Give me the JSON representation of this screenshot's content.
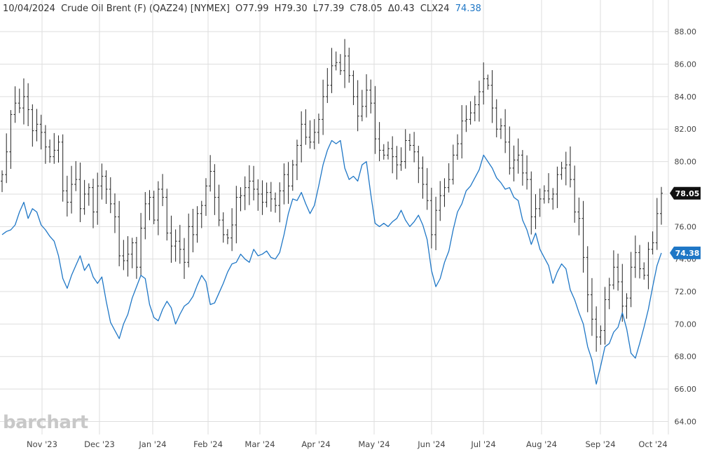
{
  "header": {
    "date": "10/04/2024",
    "instrument": "Crude Oil Brent (F) (QAZ24) [NYMEX]",
    "open": "O77.99",
    "high": "H79.30",
    "low": "L77.39",
    "close": "C78.05",
    "change": "Δ0.43",
    "compare_symbol": "CLX24",
    "compare_value": "74.38"
  },
  "watermark": "barchart",
  "colors": {
    "ohlc": "#222222",
    "compare_line": "#1f77c6",
    "grid": "#dedede",
    "badge_main": "#111111",
    "badge_compare": "#1f77c6"
  },
  "chart_data": {
    "type": "line",
    "title": "",
    "xlabel": "",
    "ylabel": "",
    "ylim": [
      63.2,
      89.0
    ],
    "y_ticks": [
      "64.00",
      "66.00",
      "68.00",
      "70.00",
      "72.00",
      "74.00",
      "76.00",
      "78.00",
      "80.00",
      "82.00",
      "84.00",
      "86.00",
      "88.00"
    ],
    "x_ticks": [
      "Nov '23",
      "Dec '23",
      "Jan '24",
      "Feb '24",
      "Mar '24",
      "Apr '24",
      "May '24",
      "Jun '24",
      "Jul '24",
      "Aug '24",
      "Sep '24",
      "Oct '24"
    ],
    "grid": true,
    "last_values": {
      "main": "78.05",
      "compare": "74.38"
    },
    "series": [
      {
        "name": "Crude Oil Brent (F) (QAZ24) [NYMEX]",
        "style": "ohlc",
        "values": [
          79.2,
          80.6,
          82.9,
          83.6,
          83.3,
          84.0,
          83.2,
          81.9,
          82.3,
          81.8,
          80.9,
          80.3,
          80.7,
          81.2,
          78.2,
          77.5,
          78.6,
          78.9,
          77.1,
          78.0,
          78.4,
          76.9,
          78.5,
          79.1,
          78.3,
          77.4,
          76.6,
          74.2,
          73.9,
          74.3,
          75.0,
          73.5,
          75.9,
          77.4,
          77.8,
          76.4,
          78.3,
          77.8,
          75.6,
          74.8,
          75.1,
          74.6,
          73.8,
          76.0,
          75.5,
          76.8,
          77.3,
          78.5,
          79.4,
          77.8,
          76.4,
          75.5,
          75.3,
          76.1,
          77.8,
          77.9,
          78.4,
          78.8,
          78.3,
          78.0,
          77.5,
          78.1,
          77.7,
          77.3,
          78.2,
          79.2,
          78.5,
          79.8,
          81.0,
          82.3,
          81.5,
          81.2,
          81.8,
          82.6,
          84.0,
          84.7,
          85.9,
          86.1,
          85.6,
          86.5,
          85.3,
          84.0,
          82.8,
          83.4,
          84.4,
          83.6,
          81.4,
          80.7,
          80.4,
          80.8,
          80.3,
          79.8,
          80.0,
          81.3,
          81.0,
          80.6,
          79.6,
          78.6,
          77.6,
          75.5,
          77.0,
          77.9,
          78.4,
          78.9,
          80.4,
          81.1,
          82.5,
          82.6,
          83.0,
          83.5,
          84.3,
          85.1,
          84.7,
          83.3,
          82.0,
          82.2,
          81.2,
          79.6,
          80.1,
          80.4,
          79.3,
          78.9,
          76.6,
          77.1,
          77.7,
          78.2,
          77.7,
          78.0,
          79.2,
          79.6,
          79.8,
          78.9,
          76.9,
          76.5,
          74.1,
          71.8,
          70.3,
          69.2,
          69.6,
          71.5,
          72.4,
          73.5,
          72.6,
          71.1,
          71.6,
          73.5,
          74.4,
          73.4,
          73.0,
          74.6,
          75.0,
          76.8,
          78.05
        ]
      },
      {
        "name": "CLX24",
        "style": "line",
        "values": [
          75.5,
          75.7,
          75.8,
          76.1,
          76.9,
          77.5,
          76.5,
          77.1,
          76.9,
          76.1,
          75.8,
          75.4,
          75.1,
          74.2,
          72.8,
          72.2,
          73.0,
          73.6,
          74.2,
          73.3,
          73.7,
          72.9,
          72.5,
          72.9,
          71.4,
          70.1,
          69.6,
          69.1,
          70.0,
          70.6,
          71.6,
          72.3,
          73.0,
          72.8,
          71.2,
          70.4,
          70.2,
          70.9,
          71.4,
          71.0,
          70.0,
          70.6,
          71.1,
          71.3,
          71.7,
          72.4,
          73.0,
          72.6,
          71.2,
          71.3,
          71.9,
          72.5,
          73.2,
          73.7,
          73.8,
          74.3,
          74.0,
          73.8,
          74.6,
          74.2,
          74.3,
          74.5,
          74.1,
          74.0,
          74.4,
          75.5,
          76.8,
          77.7,
          77.6,
          78.1,
          77.4,
          76.8,
          77.3,
          78.5,
          79.8,
          80.7,
          81.3,
          81.1,
          81.3,
          79.6,
          78.9,
          79.1,
          78.8,
          79.8,
          80.0,
          78.0,
          76.2,
          76.0,
          76.2,
          76.0,
          76.3,
          76.5,
          77.0,
          76.4,
          76.0,
          76.3,
          76.7,
          76.1,
          75.2,
          73.3,
          72.3,
          72.8,
          73.8,
          74.5,
          75.8,
          76.9,
          77.4,
          78.2,
          78.5,
          79.0,
          79.5,
          80.4,
          80.0,
          79.6,
          79.0,
          78.7,
          78.3,
          78.4,
          77.8,
          77.6,
          76.4,
          75.8,
          74.9,
          75.6,
          74.6,
          74.1,
          73.6,
          72.5,
          73.2,
          73.7,
          73.4,
          72.1,
          71.5,
          70.7,
          70.0,
          68.6,
          67.8,
          66.3,
          67.4,
          68.6,
          68.8,
          69.5,
          69.8,
          70.7,
          69.7,
          68.2,
          67.9,
          68.8,
          69.8,
          70.9,
          72.3,
          73.6,
          74.38
        ]
      }
    ]
  }
}
